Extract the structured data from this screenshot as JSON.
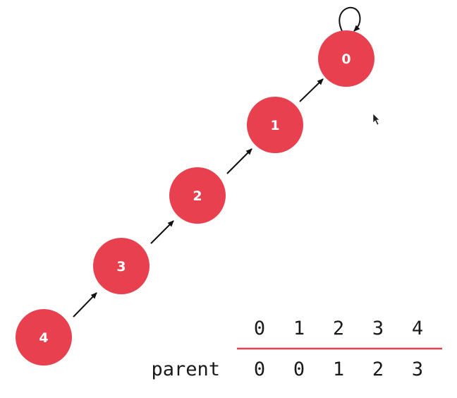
{
  "diagram": {
    "node_color": "#e8404f",
    "edge_color": "#111111",
    "nodes": [
      {
        "id": "node-0",
        "label": "0"
      },
      {
        "id": "node-1",
        "label": "1"
      },
      {
        "id": "node-2",
        "label": "2"
      },
      {
        "id": "node-3",
        "label": "3"
      },
      {
        "id": "node-4",
        "label": "4"
      }
    ],
    "edges": [
      {
        "from": "4",
        "to": "3"
      },
      {
        "from": "3",
        "to": "2"
      },
      {
        "from": "2",
        "to": "1"
      },
      {
        "from": "1",
        "to": "0"
      },
      {
        "from": "0",
        "to": "0",
        "self_loop": true
      }
    ]
  },
  "parent_table": {
    "row_label": "parent",
    "indices": [
      "0",
      "1",
      "2",
      "3",
      "4"
    ],
    "values": [
      "0",
      "0",
      "1",
      "2",
      "3"
    ],
    "divider_color": "#e8404f"
  },
  "cursor": {
    "icon": "mouse-pointer-icon"
  }
}
